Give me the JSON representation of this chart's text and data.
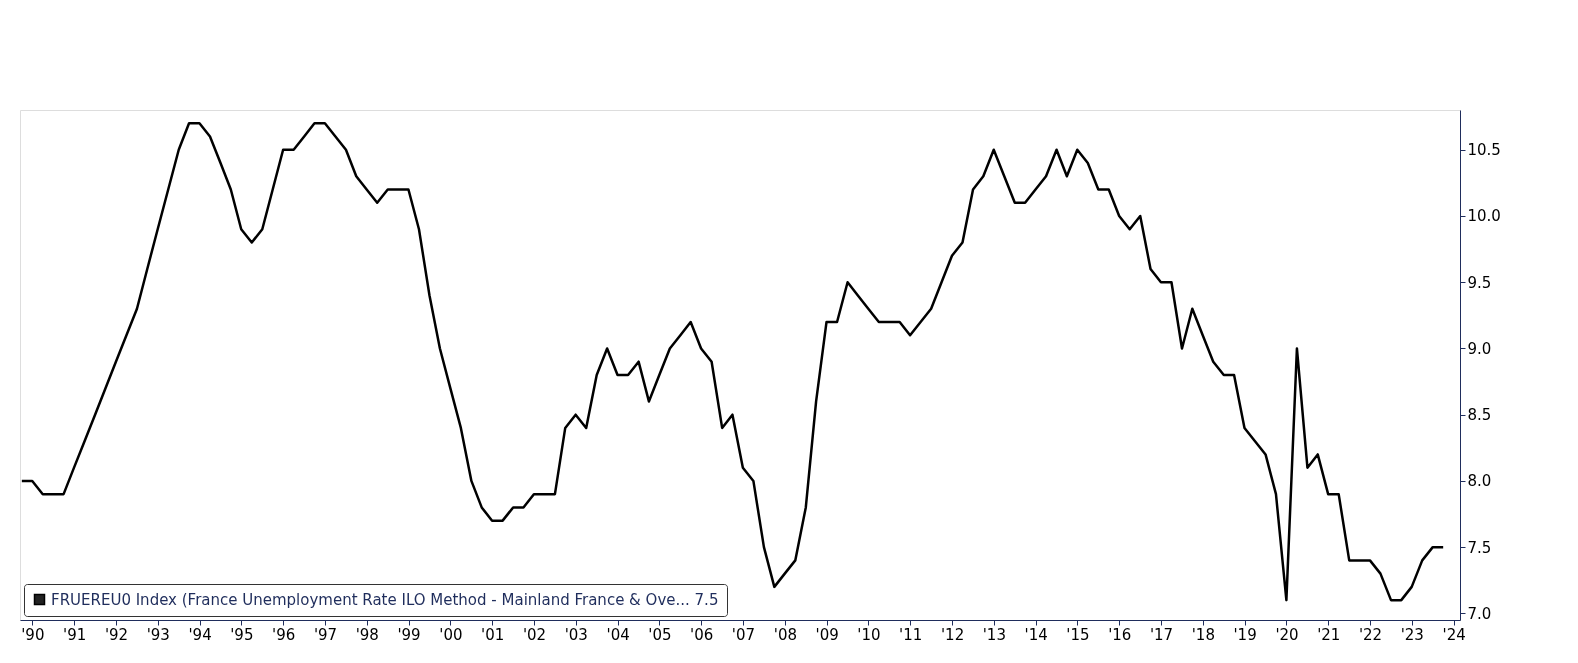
{
  "chart_data": {
    "type": "line",
    "x": [
      "1990-03-31",
      "1990-06-30",
      "1990-09-30",
      "1990-12-31",
      "1991-03-31",
      "1991-06-30",
      "1991-09-30",
      "1991-12-31",
      "1992-03-31",
      "1992-06-30",
      "1992-09-30",
      "1992-12-31",
      "1993-03-31",
      "1993-06-30",
      "1993-09-30",
      "1993-12-31",
      "1994-03-31",
      "1994-06-30",
      "1994-09-30",
      "1994-12-31",
      "1995-03-31",
      "1995-06-30",
      "1995-09-30",
      "1995-12-31",
      "1996-03-31",
      "1996-06-30",
      "1996-09-30",
      "1996-12-31",
      "1997-03-31",
      "1997-06-30",
      "1997-09-30",
      "1997-12-31",
      "1998-03-31",
      "1998-06-30",
      "1998-09-30",
      "1998-12-31",
      "1999-03-31",
      "1999-06-30",
      "1999-09-30",
      "1999-12-31",
      "2000-03-31",
      "2000-06-30",
      "2000-09-30",
      "2000-12-31",
      "2001-03-31",
      "2001-06-30",
      "2001-09-30",
      "2001-12-31",
      "2002-03-31",
      "2002-06-30",
      "2002-09-30",
      "2002-12-31",
      "2003-03-31",
      "2003-06-30",
      "2003-09-30",
      "2003-12-31",
      "2004-03-31",
      "2004-06-30",
      "2004-09-30",
      "2004-12-31",
      "2005-03-31",
      "2005-06-30",
      "2005-09-30",
      "2005-12-31",
      "2006-03-31",
      "2006-06-30",
      "2006-09-30",
      "2006-12-31",
      "2007-03-31",
      "2007-06-30",
      "2007-09-30",
      "2007-12-31",
      "2008-03-31",
      "2008-06-30",
      "2008-09-30",
      "2008-12-31",
      "2009-03-31",
      "2009-06-30",
      "2009-09-30",
      "2009-12-31",
      "2010-03-31",
      "2010-06-30",
      "2010-09-30",
      "2010-12-31",
      "2011-03-31",
      "2011-06-30",
      "2011-09-30",
      "2011-12-31",
      "2012-03-31",
      "2012-06-30",
      "2012-09-30",
      "2012-12-31",
      "2013-03-31",
      "2013-06-30",
      "2013-09-30",
      "2013-12-31",
      "2014-03-31",
      "2014-06-30",
      "2014-09-30",
      "2014-12-31",
      "2015-03-31",
      "2015-06-30",
      "2015-09-30",
      "2015-12-31",
      "2016-03-31",
      "2016-06-30",
      "2016-09-30",
      "2016-12-31",
      "2017-03-31",
      "2017-06-30",
      "2017-09-30",
      "2017-12-31",
      "2018-03-31",
      "2018-06-30",
      "2018-09-30",
      "2018-12-31",
      "2019-03-31",
      "2019-06-30",
      "2019-09-30",
      "2019-12-31",
      "2020-03-31",
      "2020-06-30",
      "2020-09-30",
      "2020-12-31",
      "2021-03-31",
      "2021-06-30",
      "2021-09-30",
      "2021-12-31",
      "2022-03-31",
      "2022-06-30",
      "2022-09-30",
      "2022-12-31",
      "2023-03-31",
      "2023-06-30",
      "2023-09-30",
      "2023-12-31",
      "2024-03-31"
    ],
    "series": [
      {
        "name": "FRUEREU0 Index (France Unemployment Rate ILO Method - Mainland France & Ove... 7.5",
        "color": "#000000",
        "values": [
          8.0,
          8.0,
          7.9,
          7.9,
          7.9,
          8.1,
          8.3,
          8.5,
          8.7,
          8.9,
          9.1,
          9.3,
          9.6,
          9.9,
          10.2,
          10.5,
          10.7,
          10.7,
          10.6,
          10.4,
          10.2,
          9.9,
          9.8,
          9.9,
          10.2,
          10.5,
          10.5,
          10.6,
          10.7,
          10.7,
          10.6,
          10.5,
          10.3,
          10.2,
          10.1,
          10.2,
          10.2,
          10.2,
          9.9,
          9.4,
          9.0,
          8.7,
          8.4,
          8.0,
          7.8,
          7.7,
          7.7,
          7.8,
          7.8,
          7.9,
          7.9,
          7.9,
          8.4,
          8.5,
          8.4,
          8.8,
          9.0,
          8.8,
          8.8,
          8.9,
          8.6,
          8.8,
          9.0,
          9.1,
          9.2,
          9.0,
          8.9,
          8.4,
          8.5,
          8.1,
          8.0,
          7.5,
          7.2,
          7.3,
          7.4,
          7.8,
          8.6,
          9.2,
          9.2,
          9.5,
          9.4,
          9.3,
          9.2,
          9.2,
          9.2,
          9.1,
          9.2,
          9.3,
          9.5,
          9.7,
          9.8,
          10.2,
          10.3,
          10.5,
          10.3,
          10.1,
          10.1,
          10.2,
          10.3,
          10.5,
          10.3,
          10.5,
          10.4,
          10.2,
          10.2,
          10.0,
          9.9,
          10.0,
          9.6,
          9.5,
          9.5,
          9.0,
          9.3,
          9.1,
          8.9,
          8.8,
          8.8,
          8.4,
          8.3,
          8.2,
          7.9,
          7.1,
          9.0,
          8.1,
          8.2,
          7.9,
          7.9,
          7.4,
          7.4,
          7.4,
          7.3,
          7.1,
          7.1,
          7.2,
          7.4,
          7.5,
          7.5
        ]
      }
    ],
    "xlim": [
      "1990-03-15",
      "2024-08-25"
    ],
    "xticks": [
      {
        "value": "1990-07-01",
        "label": "'90"
      },
      {
        "value": "1991-07-01",
        "label": "'91"
      },
      {
        "value": "1992-07-01",
        "label": "'92"
      },
      {
        "value": "1993-07-01",
        "label": "'93"
      },
      {
        "value": "1994-07-01",
        "label": "'94"
      },
      {
        "value": "1995-07-01",
        "label": "'95"
      },
      {
        "value": "1996-07-01",
        "label": "'96"
      },
      {
        "value": "1997-07-01",
        "label": "'97"
      },
      {
        "value": "1998-07-01",
        "label": "'98"
      },
      {
        "value": "1999-07-01",
        "label": "'99"
      },
      {
        "value": "2000-07-01",
        "label": "'00"
      },
      {
        "value": "2001-07-01",
        "label": "'01"
      },
      {
        "value": "2002-07-01",
        "label": "'02"
      },
      {
        "value": "2003-07-01",
        "label": "'03"
      },
      {
        "value": "2004-07-01",
        "label": "'04"
      },
      {
        "value": "2005-07-01",
        "label": "'05"
      },
      {
        "value": "2006-07-01",
        "label": "'06"
      },
      {
        "value": "2007-07-01",
        "label": "'07"
      },
      {
        "value": "2008-07-01",
        "label": "'08"
      },
      {
        "value": "2009-07-01",
        "label": "'09"
      },
      {
        "value": "2010-07-01",
        "label": "'10"
      },
      {
        "value": "2011-07-01",
        "label": "'11"
      },
      {
        "value": "2012-07-01",
        "label": "'12"
      },
      {
        "value": "2013-07-01",
        "label": "'13"
      },
      {
        "value": "2014-07-01",
        "label": "'14"
      },
      {
        "value": "2015-07-01",
        "label": "'15"
      },
      {
        "value": "2016-07-01",
        "label": "'16"
      },
      {
        "value": "2017-07-01",
        "label": "'17"
      },
      {
        "value": "2018-07-01",
        "label": "'18"
      },
      {
        "value": "2019-07-01",
        "label": "'19"
      },
      {
        "value": "2020-07-01",
        "label": "'20"
      },
      {
        "value": "2021-07-01",
        "label": "'21"
      },
      {
        "value": "2022-07-01",
        "label": "'22"
      },
      {
        "value": "2023-07-01",
        "label": "'23"
      },
      {
        "value": "2024-07-01",
        "label": "'24"
      }
    ],
    "ylim": [
      6.95,
      10.8
    ],
    "yticks": [
      {
        "value": 7.0,
        "label": "7.0"
      },
      {
        "value": 7.5,
        "label": "7.5"
      },
      {
        "value": 8.0,
        "label": "8.0"
      },
      {
        "value": 8.5,
        "label": "8.5"
      },
      {
        "value": 9.0,
        "label": "9.0"
      },
      {
        "value": 9.5,
        "label": "9.5"
      },
      {
        "value": 10.0,
        "label": "10.0"
      },
      {
        "value": 10.5,
        "label": "10.5"
      }
    ],
    "grid": false,
    "legend": "bottom left",
    "marker": "none",
    "line_style": "solid"
  }
}
